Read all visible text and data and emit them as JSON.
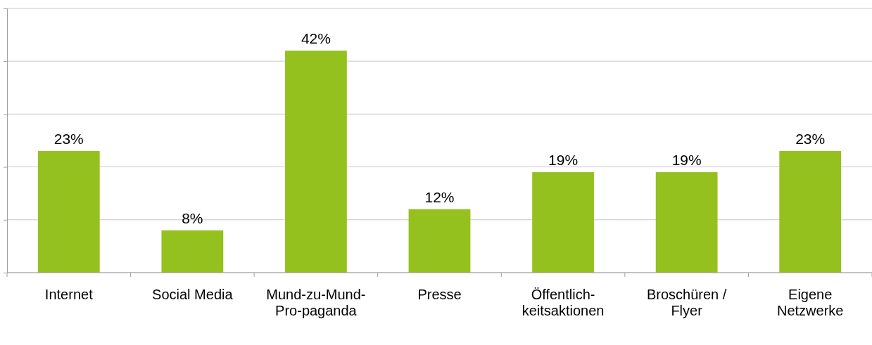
{
  "chart_data": {
    "type": "bar",
    "categories": [
      "Internet",
      "Social Media",
      "Mund-zu-Mund-Pro-paganda",
      "Presse",
      "Öffentlich-keitsaktionen",
      "Broschüren / Flyer",
      "Eigene Netzwerke"
    ],
    "values": [
      23,
      8,
      42,
      12,
      19,
      19,
      23
    ],
    "color": "#95c11f",
    "value_labels": [
      "23%",
      "8%",
      "42%",
      "12%",
      "19%",
      "19%",
      "23%"
    ],
    "grid": "y",
    "tick_labels": "x"
  }
}
